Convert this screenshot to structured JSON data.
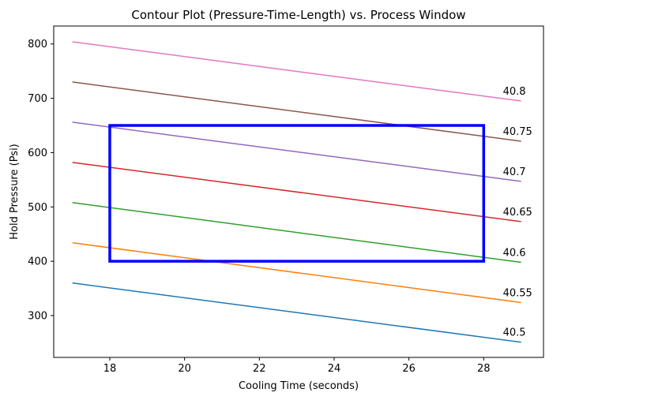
{
  "chart_data": {
    "type": "line",
    "title": "Contour Plot (Pressure-Time-Length) vs. Process Window",
    "xlabel": "Cooling Time (seconds)",
    "ylabel": "Hold Pressure (Psi)",
    "xlim": [
      16.5,
      29.6
    ],
    "ylim": [
      223,
      833
    ],
    "xticks": [
      18,
      20,
      22,
      24,
      26,
      28
    ],
    "yticks": [
      300,
      400,
      500,
      600,
      700,
      800
    ],
    "grid": false,
    "series": [
      {
        "name": "40.5",
        "color": "#1f77b4",
        "x": [
          17,
          29
        ],
        "y": [
          360,
          251
        ]
      },
      {
        "name": "40.55",
        "color": "#ff7f0e",
        "x": [
          17,
          29
        ],
        "y": [
          434,
          324
        ]
      },
      {
        "name": "40.6",
        "color": "#2ca02c",
        "x": [
          17,
          29
        ],
        "y": [
          508,
          398
        ]
      },
      {
        "name": "40.65",
        "color": "#d62728",
        "x": [
          17,
          29
        ],
        "y": [
          582,
          473
        ]
      },
      {
        "name": "40.7",
        "color": "#9467bd",
        "x": [
          17,
          29
        ],
        "y": [
          656,
          547
        ]
      },
      {
        "name": "40.75",
        "color": "#8c564b",
        "x": [
          17,
          29
        ],
        "y": [
          730,
          621
        ]
      },
      {
        "name": "40.8",
        "color": "#e377c2",
        "x": [
          17,
          29
        ],
        "y": [
          804,
          695
        ]
      }
    ],
    "process_window": {
      "color": "#0000ff",
      "x": [
        18,
        28
      ],
      "y": [
        400,
        650
      ]
    }
  }
}
